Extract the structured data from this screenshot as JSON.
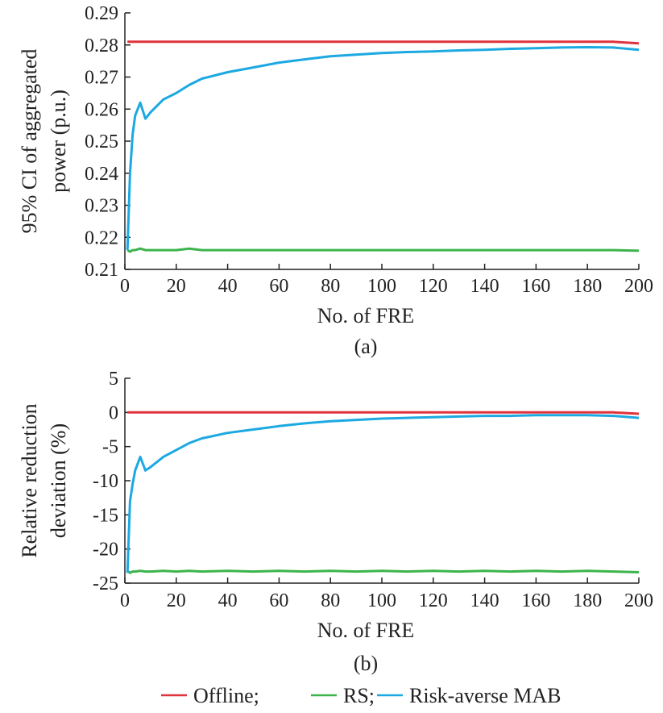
{
  "legend": {
    "items": [
      {
        "label": "Offline;",
        "color": "#e0323c"
      },
      {
        "label": "RS;",
        "color": "#3cb44b"
      },
      {
        "label": "Risk-averse MAB",
        "color": "#1ca9e1"
      }
    ]
  },
  "chart_data": [
    {
      "type": "line",
      "caption": "(a)",
      "title": "",
      "xlabel": "No. of FRE",
      "ylabel": [
        "95% CI of aggregated",
        "power (p.u.)"
      ],
      "xlim": [
        0,
        200
      ],
      "ylim": [
        0.21,
        0.29
      ],
      "xticks": [
        0,
        20,
        40,
        60,
        80,
        100,
        120,
        140,
        160,
        180,
        200
      ],
      "yticks": [
        "0.21",
        "0.22",
        "0.23",
        "0.24",
        "0.25",
        "0.26",
        "0.27",
        "0.28",
        "0.29"
      ],
      "grid": false,
      "x": [
        1,
        2,
        3,
        4,
        6,
        8,
        10,
        15,
        20,
        25,
        30,
        40,
        50,
        60,
        70,
        80,
        90,
        100,
        110,
        120,
        130,
        140,
        150,
        160,
        170,
        180,
        190,
        200
      ],
      "series": [
        {
          "name": "Offline",
          "color": "#e0323c",
          "values": [
            0.281,
            0.281,
            0.281,
            0.281,
            0.281,
            0.281,
            0.281,
            0.281,
            0.281,
            0.281,
            0.281,
            0.281,
            0.281,
            0.281,
            0.281,
            0.281,
            0.281,
            0.281,
            0.281,
            0.281,
            0.281,
            0.281,
            0.281,
            0.281,
            0.281,
            0.281,
            0.281,
            0.2805
          ]
        },
        {
          "name": "RS",
          "color": "#3cb44b",
          "values": [
            0.216,
            0.2155,
            0.216,
            0.216,
            0.2165,
            0.216,
            0.216,
            0.216,
            0.216,
            0.2165,
            0.216,
            0.216,
            0.216,
            0.216,
            0.216,
            0.216,
            0.216,
            0.216,
            0.216,
            0.216,
            0.216,
            0.216,
            0.216,
            0.216,
            0.216,
            0.216,
            0.216,
            0.2158
          ]
        },
        {
          "name": "Risk-averse MAB",
          "color": "#1ca9e1",
          "values": [
            0.216,
            0.24,
            0.252,
            0.258,
            0.262,
            0.257,
            0.259,
            0.263,
            0.265,
            0.2675,
            0.2695,
            0.2715,
            0.273,
            0.2745,
            0.2755,
            0.2765,
            0.277,
            0.2775,
            0.2778,
            0.278,
            0.2783,
            0.2785,
            0.2788,
            0.279,
            0.2792,
            0.2793,
            0.2792,
            0.2785
          ]
        }
      ]
    },
    {
      "type": "line",
      "caption": "(b)",
      "title": "",
      "xlabel": "No. of FRE",
      "ylabel": [
        "Relative reduction",
        "deviation (%)"
      ],
      "xlim": [
        0,
        200
      ],
      "ylim": [
        -25,
        5
      ],
      "xticks": [
        0,
        20,
        40,
        60,
        80,
        100,
        120,
        140,
        160,
        180,
        200
      ],
      "yticks": [
        "-25",
        "-20",
        "-15",
        "-10",
        "-5",
        "0",
        "5"
      ],
      "grid": false,
      "x": [
        1,
        2,
        3,
        4,
        6,
        8,
        10,
        15,
        20,
        25,
        30,
        40,
        50,
        60,
        70,
        80,
        90,
        100,
        110,
        120,
        130,
        140,
        150,
        160,
        170,
        180,
        190,
        200
      ],
      "series": [
        {
          "name": "Offline",
          "color": "#e0323c",
          "values": [
            0,
            0,
            0,
            0,
            0,
            0,
            0,
            0,
            0,
            0,
            0,
            0,
            0,
            0,
            0,
            0,
            0,
            0,
            0,
            0,
            0,
            0,
            0,
            0,
            0,
            0,
            0,
            -0.2
          ]
        },
        {
          "name": "RS",
          "color": "#3cb44b",
          "values": [
            -23.2,
            -23.5,
            -23.3,
            -23.3,
            -23.2,
            -23.3,
            -23.3,
            -23.2,
            -23.3,
            -23.2,
            -23.3,
            -23.2,
            -23.3,
            -23.2,
            -23.3,
            -23.2,
            -23.3,
            -23.2,
            -23.3,
            -23.2,
            -23.3,
            -23.2,
            -23.3,
            -23.2,
            -23.3,
            -23.2,
            -23.3,
            -23.4
          ]
        },
        {
          "name": "Risk-averse MAB",
          "color": "#1ca9e1",
          "values": [
            -23.5,
            -13,
            -10.5,
            -8.5,
            -6.5,
            -8.5,
            -8,
            -6.5,
            -5.5,
            -4.5,
            -3.8,
            -3,
            -2.5,
            -2,
            -1.6,
            -1.3,
            -1.1,
            -0.9,
            -0.8,
            -0.7,
            -0.6,
            -0.5,
            -0.5,
            -0.4,
            -0.4,
            -0.4,
            -0.5,
            -0.8
          ]
        }
      ]
    }
  ]
}
